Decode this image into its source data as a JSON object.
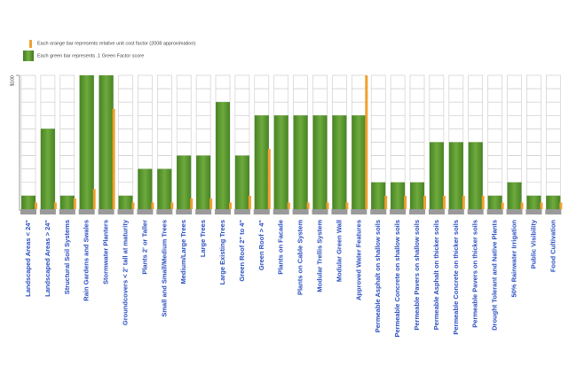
{
  "chart_data": {
    "type": "bar",
    "legend": [
      "Each orange bar represents relative unit cost factor (2008 approximation)",
      "Each green bar represents .1 Green Factor score"
    ],
    "categories": [
      "Landscaped Areas < 24\"",
      "Landscaped Areas > 24\"",
      "Structural Soil Systems",
      "Rain Gardens and Swales",
      "Stormwater Planters",
      "Groundcovers < 2' tall at maturity",
      "Plants 2' or Taller",
      "Small and Small/Medium Trees",
      "Medium/Large Trees",
      "Large Trees",
      "Large Existing Trees",
      "Green Roof 2\" to 4\"",
      "Green Roof > 4\"",
      "Plants on Facade",
      "Plants on Cable System",
      "Modular Trellis System",
      "Modular Green Wall",
      "Approved Water Features",
      "Permeable Asphalt on shallow soils",
      "Permeable Concrete on shallow soils",
      "Permeable Pavers on shallow soils",
      "Permeable Asphalt on thicker soils",
      "Permeable Concrete on thicker soils",
      "Permeable Pavers on thicker soils",
      "Drought Tolerant and Native Plants",
      "50% Rainwater Irrigation",
      "Public Visibility",
      "Food Cultivation"
    ],
    "series": [
      {
        "color": "#5a9a2e",
        "values": [
          0.1,
          0.6,
          0.1,
          1.0,
          1.0,
          0.1,
          0.3,
          0.3,
          0.4,
          0.4,
          0.8,
          0.4,
          0.7,
          0.7,
          0.7,
          0.7,
          0.7,
          0.7,
          0.2,
          0.2,
          0.2,
          0.5,
          0.5,
          0.5,
          0.1,
          0.2,
          0.1,
          0.1
        ]
      },
      {
        "color": "#f0a030",
        "axis": "y2",
        "values": [
          5,
          5,
          8,
          15,
          75,
          5,
          5,
          5,
          8,
          8,
          5,
          10,
          45,
          5,
          5,
          5,
          5,
          100,
          10,
          10,
          10,
          10,
          10,
          10,
          5,
          5,
          5,
          5
        ]
      }
    ],
    "ylim": [
      0,
      1
    ],
    "y2lim": [
      0,
      100
    ],
    "y2ticks": [
      {
        "value": 100,
        "label": "$100"
      }
    ]
  }
}
